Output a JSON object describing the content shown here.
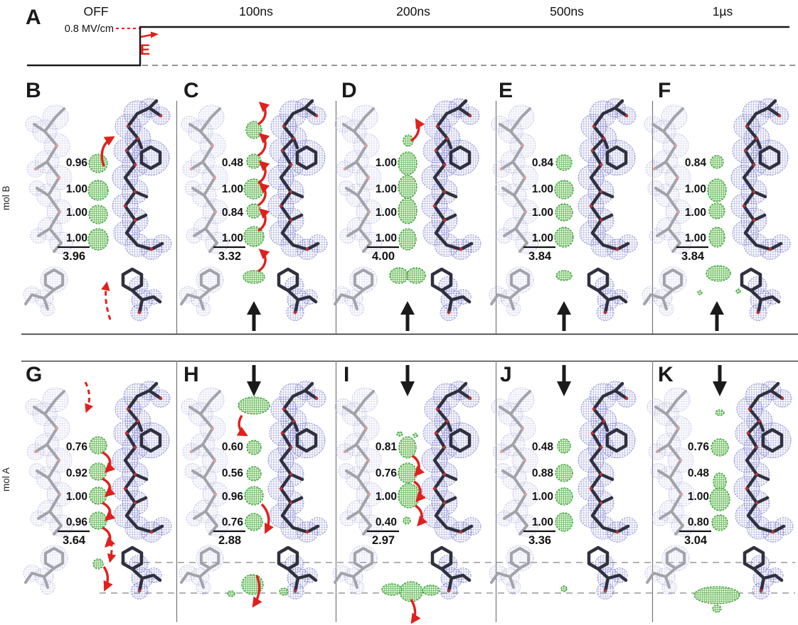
{
  "figure": {
    "panel_a": {
      "label": "A",
      "time_labels": [
        "OFF",
        "100ns",
        "200ns",
        "500ns",
        "1µs"
      ],
      "field_label": "0.8 MV/cm",
      "e_label": "E"
    },
    "row_labels": {
      "top": "mol B",
      "bottom": "mol A"
    },
    "panels": [
      {
        "label": "B",
        "row": "mol B",
        "time": "OFF",
        "occupancies": [
          "0.96",
          "1.00",
          "1.00",
          "1.00"
        ],
        "sum": "3.96",
        "black_arrow": "none",
        "red_arrows": "solid curved arrow up at top site; dashed curved arrow up near lower Phe"
      },
      {
        "label": "C",
        "row": "mol B",
        "time": "100ns",
        "occupancies": [
          "0.48",
          "1.00",
          "0.84",
          "1.00"
        ],
        "sum": "3.32",
        "black_arrow": "up",
        "red_arrows": "chain of solid curved arrows pointing up along water sites; extra unlabeled density above and below chain"
      },
      {
        "label": "D",
        "row": "mol B",
        "time": "200ns",
        "occupancies": [
          "1.00",
          "1.00",
          "1.00",
          "1.00"
        ],
        "sum": "4.00",
        "black_arrow": "up",
        "red_arrows": "single solid curved arrow up at small top blob; merged density lobe below"
      },
      {
        "label": "E",
        "row": "mol B",
        "time": "500ns",
        "occupancies": [
          "0.84",
          "1.00",
          "1.00",
          "1.00"
        ],
        "sum": "3.84",
        "black_arrow": "up",
        "red_arrows": "none"
      },
      {
        "label": "F",
        "row": "mol B",
        "time": "1µs",
        "occupancies": [
          "0.84",
          "1.00",
          "1.00",
          "1.00"
        ],
        "sum": "3.84",
        "black_arrow": "up",
        "red_arrows": "none"
      },
      {
        "label": "G",
        "row": "mol A",
        "time": "OFF",
        "occupancies": [
          "0.76",
          "0.92",
          "1.00",
          "0.96"
        ],
        "sum": "3.64",
        "black_arrow": "none",
        "red_arrows": "dashed curved arrow down at top; chain of solid curved arrows down; dashed and solid arrows continue below small blob"
      },
      {
        "label": "H",
        "row": "mol A",
        "time": "100ns",
        "occupancies": [
          "0.60",
          "0.56",
          "0.96",
          "0.76"
        ],
        "sum": "2.88",
        "black_arrow": "down",
        "red_arrows": "arrow down from arc-shaped density at top; arrow down at bottom site; arrow down through density cluster below"
      },
      {
        "label": "I",
        "row": "mol A",
        "time": "200ns",
        "occupancies": [
          "0.81",
          "0.76",
          "1.00",
          "0.40"
        ],
        "sum": "2.97",
        "black_arrow": "down",
        "red_arrows": "chain of solid curved arrows pointing down; arrow down from winged density at bottom"
      },
      {
        "label": "J",
        "row": "mol A",
        "time": "500ns",
        "occupancies": [
          "0.48",
          "0.88",
          "1.00",
          "1.00"
        ],
        "sum": "3.36",
        "black_arrow": "down",
        "red_arrows": "none"
      },
      {
        "label": "K",
        "row": "mol A",
        "time": "1µs",
        "occupancies": [
          "0.76",
          "0.48",
          "1.00",
          "0.80"
        ],
        "sum": "3.04",
        "black_arrow": "down",
        "red_arrows": "none; elongated density blob at bottom"
      }
    ],
    "colors": {
      "positive_density_green": "#2f9e2f",
      "mesh_blue": "#5555c3",
      "mesh_light": "#a8a8d8",
      "stick_dark": "#30303f",
      "stick_light": "#a2a2aa",
      "arrow_red": "#e0201c",
      "arrow_black": "#1a1a1a",
      "oxygen_red": "#c03030"
    }
  }
}
